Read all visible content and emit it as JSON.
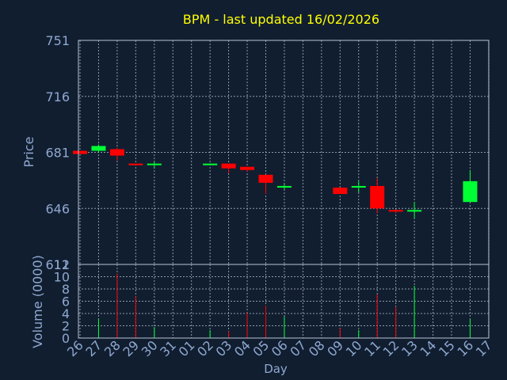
{
  "chart_data": [
    {
      "type": "candlestick",
      "title": "BPM - last updated 16/02/2026",
      "ylabel": "Price",
      "xlabel": "",
      "ylim": [
        611,
        751
      ],
      "yticks": [
        611,
        646,
        681,
        716,
        751
      ],
      "grid": true,
      "categories": [
        "26",
        "27",
        "28",
        "29",
        "30",
        "31",
        "01",
        "02",
        "03",
        "04",
        "05",
        "06",
        "07",
        "08",
        "09",
        "10",
        "11",
        "12",
        "13",
        "14",
        "15",
        "16",
        "17"
      ],
      "candles": [
        {
          "day": "26",
          "open": 682,
          "close": 680,
          "high": 682,
          "low": 680
        },
        {
          "day": "27",
          "open": 682,
          "close": 685,
          "high": 686,
          "low": 681
        },
        {
          "day": "28",
          "open": 683,
          "close": 679,
          "high": 684,
          "low": 676
        },
        {
          "day": "29",
          "open": 674,
          "close": 673,
          "high": 674,
          "low": 673
        },
        {
          "day": "30",
          "open": 673,
          "close": 674,
          "high": 675,
          "low": 671
        },
        {
          "day": "02",
          "open": 673,
          "close": 674,
          "high": 674,
          "low": 673
        },
        {
          "day": "03",
          "open": 674,
          "close": 671,
          "high": 674,
          "low": 668
        },
        {
          "day": "04",
          "open": 672,
          "close": 670,
          "high": 672,
          "low": 669
        },
        {
          "day": "05",
          "open": 667,
          "close": 662,
          "high": 667,
          "low": 655
        },
        {
          "day": "06",
          "open": 659,
          "close": 660,
          "high": 661,
          "low": 658
        },
        {
          "day": "09",
          "open": 659,
          "close": 655,
          "high": 659,
          "low": 655
        },
        {
          "day": "10",
          "open": 659,
          "close": 660,
          "high": 663,
          "low": 656
        },
        {
          "day": "11",
          "open": 660,
          "close": 646,
          "high": 665,
          "low": 643
        },
        {
          "day": "12",
          "open": 645,
          "close": 644,
          "high": 645,
          "low": 643
        },
        {
          "day": "13",
          "open": 644,
          "close": 645,
          "high": 650,
          "low": 640
        },
        {
          "day": "16",
          "open": 650,
          "close": 663,
          "high": 670,
          "low": 650
        }
      ]
    },
    {
      "type": "bar",
      "ylabel": "Volume (0000)",
      "xlabel": "Day",
      "ylim": [
        0,
        12
      ],
      "yticks": [
        0,
        2,
        4,
        6,
        8,
        10,
        12
      ],
      "grid": true,
      "categories": [
        "26",
        "27",
        "28",
        "29",
        "30",
        "31",
        "01",
        "02",
        "03",
        "04",
        "05",
        "06",
        "07",
        "08",
        "09",
        "10",
        "11",
        "12",
        "13",
        "14",
        "15",
        "16",
        "17"
      ],
      "bars": [
        {
          "day": "26",
          "value": 0,
          "direction": "down"
        },
        {
          "day": "27",
          "value": 3.1,
          "direction": "up"
        },
        {
          "day": "28",
          "value": 10.5,
          "direction": "down"
        },
        {
          "day": "29",
          "value": 6.8,
          "direction": "down"
        },
        {
          "day": "30",
          "value": 1.8,
          "direction": "up"
        },
        {
          "day": "02",
          "value": 1.3,
          "direction": "up"
        },
        {
          "day": "03",
          "value": 1.1,
          "direction": "down"
        },
        {
          "day": "04",
          "value": 4.1,
          "direction": "down"
        },
        {
          "day": "05",
          "value": 5.3,
          "direction": "down"
        },
        {
          "day": "06",
          "value": 3.5,
          "direction": "up"
        },
        {
          "day": "09",
          "value": 1.6,
          "direction": "down"
        },
        {
          "day": "10",
          "value": 1.3,
          "direction": "up"
        },
        {
          "day": "11",
          "value": 7.1,
          "direction": "down"
        },
        {
          "day": "12",
          "value": 5.1,
          "direction": "down"
        },
        {
          "day": "13",
          "value": 8.5,
          "direction": "up"
        },
        {
          "day": "16",
          "value": 3.1,
          "direction": "up"
        }
      ]
    }
  ],
  "colors": {
    "up": "#00ff33",
    "down": "#ff0000",
    "background": "#111e30",
    "title": "#ffff00",
    "axis_text": "#8fa8d0",
    "grid": "#b8c4d4"
  }
}
